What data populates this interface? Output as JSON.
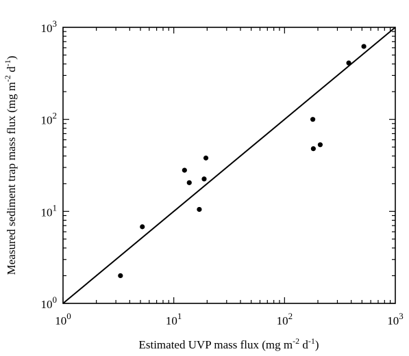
{
  "chart_data": {
    "type": "scatter",
    "title": "",
    "xlabel": "Estimated UVP mass flux (mg m^-2 d^-1)",
    "ylabel": "Measured sediment trap mass flux (mg m^-2 d^-1)",
    "xlabel_parts": {
      "main": "Estimated UVP mass flux (mg m",
      "sup1": "-2",
      "mid": " d",
      "sup2": "-1",
      "end": ")"
    },
    "ylabel_parts": {
      "main": "Measured sediment trap mass flux (mg m",
      "sup1": "-2",
      "mid": " d",
      "sup2": "-1",
      "end": ")"
    },
    "xscale": "log",
    "yscale": "log",
    "xlim": [
      1,
      1000
    ],
    "ylim": [
      1,
      1000
    ],
    "x_ticks": [
      1,
      10,
      100,
      1000
    ],
    "y_ticks": [
      1,
      10,
      100,
      1000
    ],
    "tick_labels": [
      {
        "base": "10",
        "exp": "0"
      },
      {
        "base": "10",
        "exp": "1"
      },
      {
        "base": "10",
        "exp": "2"
      },
      {
        "base": "10",
        "exp": "3"
      }
    ],
    "grid": false,
    "points": [
      {
        "x": 3.3,
        "y": 2.0
      },
      {
        "x": 5.2,
        "y": 6.8
      },
      {
        "x": 12.5,
        "y": 28
      },
      {
        "x": 13.8,
        "y": 20.5
      },
      {
        "x": 17.0,
        "y": 10.5
      },
      {
        "x": 18.8,
        "y": 22.5
      },
      {
        "x": 19.5,
        "y": 38
      },
      {
        "x": 180,
        "y": 100
      },
      {
        "x": 182,
        "y": 48
      },
      {
        "x": 210,
        "y": 53
      },
      {
        "x": 380,
        "y": 410
      },
      {
        "x": 520,
        "y": 620
      }
    ],
    "reference_line": {
      "type": "1:1",
      "from": [
        1,
        1
      ],
      "to": [
        1000,
        1000
      ]
    },
    "colors": {
      "points": "#000000",
      "line": "#000000"
    }
  }
}
